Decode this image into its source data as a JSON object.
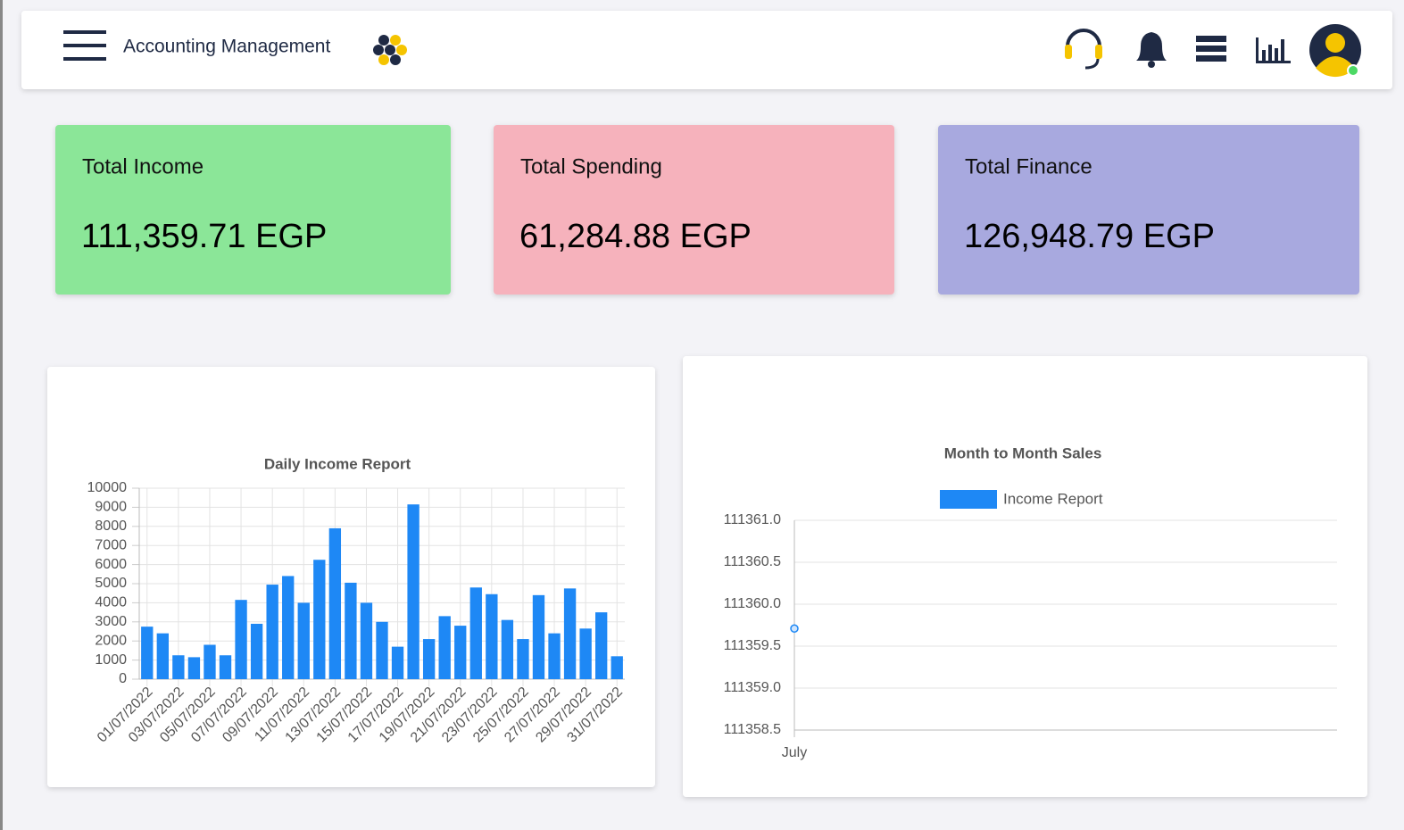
{
  "header": {
    "title": "Accounting Management"
  },
  "cards": [
    {
      "label": "Total Income",
      "value": "111,359.71 EGP",
      "color": "#8be698"
    },
    {
      "label": "Total Spending",
      "value": "61,284.88 EGP",
      "color": "#f6b2bc"
    },
    {
      "label": "Total Finance",
      "value": "126,948.79 EGP",
      "color": "#a8a9df"
    }
  ],
  "chart_data": [
    {
      "type": "bar",
      "title": "Daily Income Report",
      "categories": [
        "01/07/2022",
        null,
        "03/07/2022",
        null,
        "05/07/2022",
        null,
        "07/07/2022",
        null,
        "09/07/2022",
        null,
        "11/07/2022",
        null,
        "13/07/2022",
        null,
        "15/07/2022",
        null,
        "17/07/2022",
        null,
        "19/07/2022",
        null,
        "21/07/2022",
        null,
        "23/07/2022",
        null,
        "25/07/2022",
        null,
        "27/07/2022",
        null,
        "29/07/2022",
        null,
        "31/07/2022"
      ],
      "values": [
        2750,
        2400,
        1250,
        1150,
        1800,
        1250,
        4150,
        2900,
        4950,
        5400,
        4000,
        6250,
        7900,
        5050,
        4000,
        3000,
        1700,
        9150,
        2100,
        3300,
        2800,
        4800,
        4450,
        3100,
        2100,
        4400,
        2400,
        4750,
        2650,
        3500,
        1200
      ],
      "color": "#1e88f5",
      "ylim": [
        0,
        10000
      ],
      "yticks": [
        0,
        1000,
        2000,
        3000,
        4000,
        5000,
        6000,
        7000,
        8000,
        9000,
        10000
      ],
      "grid": true
    },
    {
      "type": "line",
      "title": "Month to Month Sales",
      "categories": [
        "July"
      ],
      "series": [
        {
          "name": "Income Report",
          "color": "#1e88f5",
          "values": [
            111359.71
          ]
        }
      ],
      "ylim": [
        111358.5,
        111361.0
      ],
      "yticks": [
        111358.5,
        {
          "value": 111359,
          "label": "111359.0"
        },
        111359.5,
        {
          "value": 111360,
          "label": "111360.0"
        },
        111360.5,
        {
          "value": 111361,
          "label": "111361.0"
        }
      ],
      "grid": true
    }
  ]
}
